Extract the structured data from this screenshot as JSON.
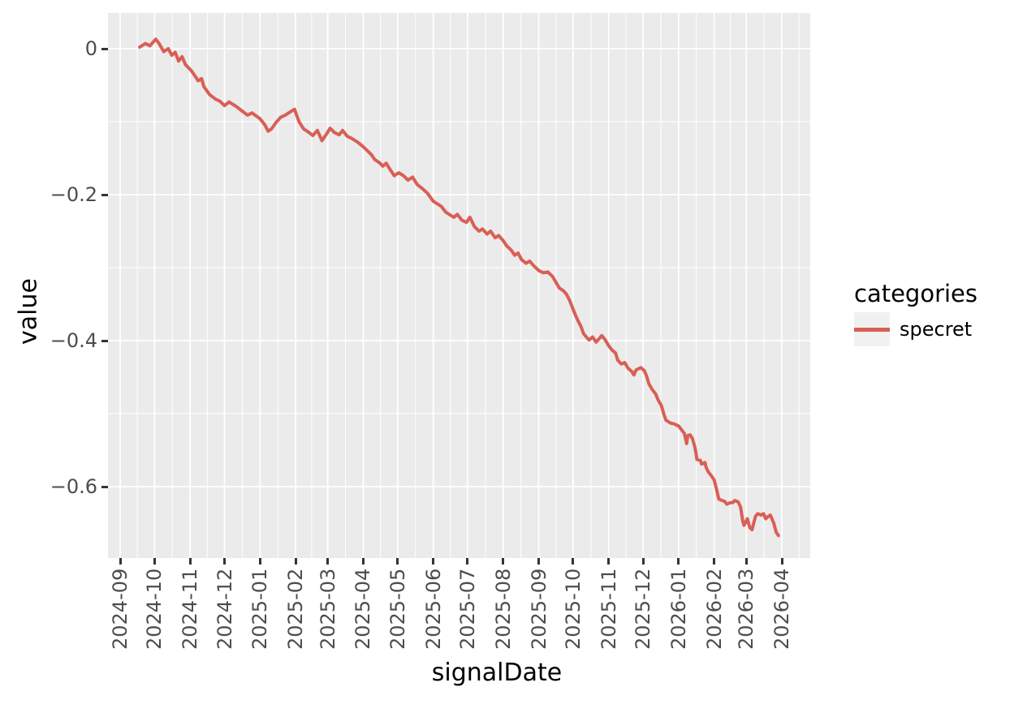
{
  "figure": {
    "background": "#FFFFFF",
    "panel_background": "#EBEBEB",
    "grid_color": "#FFFFFF",
    "tick_mark_color": "#333333",
    "tick_label_color": "#4D4D4D",
    "axis_title_color": "#000000",
    "legend_key_background": "#F1F1F1"
  },
  "chart_data": {
    "type": "line",
    "title": "",
    "xlabel": "signalDate",
    "ylabel": "value",
    "grid": {
      "major": true,
      "minor": true
    },
    "ylim": [
      -0.7,
      0.05
    ],
    "xlim": [
      "2024-08-21",
      "2026-04-25"
    ],
    "y_ticks": [
      {
        "label": "0",
        "value": 0
      },
      {
        "label": "−0.2",
        "value": -0.2
      },
      {
        "label": "−0.4",
        "value": -0.4
      },
      {
        "label": "−0.6",
        "value": -0.6
      }
    ],
    "y_minor_ticks": [
      -0.1,
      -0.3,
      -0.5
    ],
    "x_ticks": [
      "2024-09",
      "2024-10",
      "2024-11",
      "2024-12",
      "2025-01",
      "2025-02",
      "2025-03",
      "2025-04",
      "2025-05",
      "2025-06",
      "2025-07",
      "2025-08",
      "2025-09",
      "2025-10",
      "2025-11",
      "2025-12",
      "2026-01",
      "2026-02",
      "2026-03",
      "2026-04"
    ],
    "legend": {
      "title": "categories",
      "position": "right"
    },
    "series": [
      {
        "name": "specret",
        "color": "#D95F56",
        "points": [
          [
            "2024-09-18",
            0.002
          ],
          [
            "2024-09-23",
            0.007
          ],
          [
            "2024-09-27",
            0.004
          ],
          [
            "2024-10-02",
            0.013
          ],
          [
            "2024-10-05",
            0.007
          ],
          [
            "2024-10-09",
            -0.004
          ],
          [
            "2024-10-13",
            0.0
          ],
          [
            "2024-10-16",
            -0.009
          ],
          [
            "2024-10-19",
            -0.005
          ],
          [
            "2024-10-22",
            -0.017
          ],
          [
            "2024-10-25",
            -0.011
          ],
          [
            "2024-10-28",
            -0.022
          ],
          [
            "2024-11-02",
            -0.03
          ],
          [
            "2024-11-06",
            -0.039
          ],
          [
            "2024-11-08",
            -0.044
          ],
          [
            "2024-11-11",
            -0.041
          ],
          [
            "2024-11-13",
            -0.052
          ],
          [
            "2024-11-18",
            -0.063
          ],
          [
            "2024-11-23",
            -0.069
          ],
          [
            "2024-11-27",
            -0.072
          ],
          [
            "2024-12-01",
            -0.078
          ],
          [
            "2024-12-05",
            -0.073
          ],
          [
            "2024-12-08",
            -0.076
          ],
          [
            "2024-12-11",
            -0.079
          ],
          [
            "2024-12-16",
            -0.085
          ],
          [
            "2024-12-21",
            -0.091
          ],
          [
            "2024-12-25",
            -0.088
          ],
          [
            "2025-01-01",
            -0.096
          ],
          [
            "2025-01-05",
            -0.104
          ],
          [
            "2025-01-08",
            -0.113
          ],
          [
            "2025-01-11",
            -0.11
          ],
          [
            "2025-01-15",
            -0.101
          ],
          [
            "2025-01-19",
            -0.094
          ],
          [
            "2025-01-23",
            -0.091
          ],
          [
            "2025-01-27",
            -0.087
          ],
          [
            "2025-01-31",
            -0.083
          ],
          [
            "2025-02-04",
            -0.1
          ],
          [
            "2025-02-08",
            -0.11
          ],
          [
            "2025-02-12",
            -0.114
          ],
          [
            "2025-02-16",
            -0.119
          ],
          [
            "2025-02-20",
            -0.112
          ],
          [
            "2025-02-24",
            -0.126
          ],
          [
            "2025-02-28",
            -0.117
          ],
          [
            "2025-03-03",
            -0.109
          ],
          [
            "2025-03-07",
            -0.115
          ],
          [
            "2025-03-11",
            -0.118
          ],
          [
            "2025-03-14",
            -0.112
          ],
          [
            "2025-03-18",
            -0.12
          ],
          [
            "2025-03-22",
            -0.123
          ],
          [
            "2025-03-27",
            -0.128
          ],
          [
            "2025-03-31",
            -0.133
          ],
          [
            "2025-04-04",
            -0.139
          ],
          [
            "2025-04-08",
            -0.145
          ],
          [
            "2025-04-11",
            -0.152
          ],
          [
            "2025-04-15",
            -0.156
          ],
          [
            "2025-04-18",
            -0.161
          ],
          [
            "2025-04-21",
            -0.157
          ],
          [
            "2025-04-25",
            -0.167
          ],
          [
            "2025-04-28",
            -0.174
          ],
          [
            "2025-05-02",
            -0.17
          ],
          [
            "2025-05-06",
            -0.174
          ],
          [
            "2025-05-10",
            -0.18
          ],
          [
            "2025-05-14",
            -0.176
          ],
          [
            "2025-05-18",
            -0.186
          ],
          [
            "2025-05-22",
            -0.191
          ],
          [
            "2025-05-27",
            -0.198
          ],
          [
            "2025-06-01",
            -0.209
          ],
          [
            "2025-06-05",
            -0.213
          ],
          [
            "2025-06-08",
            -0.216
          ],
          [
            "2025-06-12",
            -0.224
          ],
          [
            "2025-06-15",
            -0.227
          ],
          [
            "2025-06-19",
            -0.231
          ],
          [
            "2025-06-22",
            -0.227
          ],
          [
            "2025-06-26",
            -0.235
          ],
          [
            "2025-06-30",
            -0.238
          ],
          [
            "2025-07-03",
            -0.231
          ],
          [
            "2025-07-07",
            -0.244
          ],
          [
            "2025-07-11",
            -0.25
          ],
          [
            "2025-07-14",
            -0.247
          ],
          [
            "2025-07-18",
            -0.254
          ],
          [
            "2025-07-21",
            -0.25
          ],
          [
            "2025-07-25",
            -0.259
          ],
          [
            "2025-07-28",
            -0.256
          ],
          [
            "2025-08-01",
            -0.263
          ],
          [
            "2025-08-04",
            -0.27
          ],
          [
            "2025-08-08",
            -0.276
          ],
          [
            "2025-08-11",
            -0.283
          ],
          [
            "2025-08-14",
            -0.28
          ],
          [
            "2025-08-17",
            -0.289
          ],
          [
            "2025-08-21",
            -0.294
          ],
          [
            "2025-08-24",
            -0.291
          ],
          [
            "2025-08-28",
            -0.298
          ],
          [
            "2025-09-01",
            -0.304
          ],
          [
            "2025-09-05",
            -0.307
          ],
          [
            "2025-09-09",
            -0.306
          ],
          [
            "2025-09-13",
            -0.312
          ],
          [
            "2025-09-16",
            -0.32
          ],
          [
            "2025-09-19",
            -0.328
          ],
          [
            "2025-09-22",
            -0.331
          ],
          [
            "2025-09-25",
            -0.336
          ],
          [
            "2025-09-28",
            -0.345
          ],
          [
            "2025-09-30",
            -0.353
          ],
          [
            "2025-10-03",
            -0.365
          ],
          [
            "2025-10-05",
            -0.372
          ],
          [
            "2025-10-08",
            -0.381
          ],
          [
            "2025-10-10",
            -0.39
          ],
          [
            "2025-10-13",
            -0.396
          ],
          [
            "2025-10-15",
            -0.399
          ],
          [
            "2025-10-18",
            -0.395
          ],
          [
            "2025-10-21",
            -0.402
          ],
          [
            "2025-10-24",
            -0.397
          ],
          [
            "2025-10-26",
            -0.393
          ],
          [
            "2025-10-29",
            -0.399
          ],
          [
            "2025-11-01",
            -0.407
          ],
          [
            "2025-11-04",
            -0.413
          ],
          [
            "2025-11-07",
            -0.417
          ],
          [
            "2025-11-09",
            -0.427
          ],
          [
            "2025-11-12",
            -0.432
          ],
          [
            "2025-11-15",
            -0.43
          ],
          [
            "2025-11-18",
            -0.438
          ],
          [
            "2025-11-21",
            -0.442
          ],
          [
            "2025-11-23",
            -0.447
          ],
          [
            "2025-11-25",
            -0.44
          ],
          [
            "2025-11-29",
            -0.437
          ],
          [
            "2025-12-02",
            -0.441
          ],
          [
            "2025-12-04",
            -0.448
          ],
          [
            "2025-12-06",
            -0.459
          ],
          [
            "2025-12-09",
            -0.467
          ],
          [
            "2025-12-12",
            -0.473
          ],
          [
            "2025-12-14",
            -0.481
          ],
          [
            "2025-12-17",
            -0.489
          ],
          [
            "2025-12-19",
            -0.5
          ],
          [
            "2025-12-21",
            -0.509
          ],
          [
            "2025-12-25",
            -0.513
          ],
          [
            "2025-12-28",
            -0.514
          ],
          [
            "2026-01-01",
            -0.517
          ],
          [
            "2026-01-03",
            -0.521
          ],
          [
            "2026-01-06",
            -0.527
          ],
          [
            "2026-01-08",
            -0.541
          ],
          [
            "2026-01-09",
            -0.53
          ],
          [
            "2026-01-11",
            -0.529
          ],
          [
            "2026-01-13",
            -0.534
          ],
          [
            "2026-01-15",
            -0.545
          ],
          [
            "2026-01-16",
            -0.553
          ],
          [
            "2026-01-17",
            -0.563
          ],
          [
            "2026-01-20",
            -0.564
          ],
          [
            "2026-01-21",
            -0.569
          ],
          [
            "2026-01-24",
            -0.567
          ],
          [
            "2026-01-25",
            -0.574
          ],
          [
            "2026-01-27",
            -0.58
          ],
          [
            "2026-01-30",
            -0.586
          ],
          [
            "2026-02-01",
            -0.591
          ],
          [
            "2026-02-03",
            -0.603
          ],
          [
            "2026-02-05",
            -0.617
          ],
          [
            "2026-02-08",
            -0.619
          ],
          [
            "2026-02-10",
            -0.62
          ],
          [
            "2026-02-12",
            -0.624
          ],
          [
            "2026-02-15",
            -0.622
          ],
          [
            "2026-02-17",
            -0.622
          ],
          [
            "2026-02-19",
            -0.619
          ],
          [
            "2026-02-22",
            -0.621
          ],
          [
            "2026-02-24",
            -0.628
          ],
          [
            "2026-02-26",
            -0.648
          ],
          [
            "2026-02-27",
            -0.653
          ],
          [
            "2026-03-01",
            -0.647
          ],
          [
            "2026-03-02",
            -0.644
          ],
          [
            "2026-03-04",
            -0.656
          ],
          [
            "2026-03-06",
            -0.659
          ],
          [
            "2026-03-08",
            -0.647
          ],
          [
            "2026-03-09",
            -0.641
          ],
          [
            "2026-03-11",
            -0.637
          ],
          [
            "2026-03-14",
            -0.639
          ],
          [
            "2026-03-16",
            -0.637
          ],
          [
            "2026-03-18",
            -0.644
          ],
          [
            "2026-03-20",
            -0.641
          ],
          [
            "2026-03-22",
            -0.639
          ],
          [
            "2026-03-25",
            -0.65
          ],
          [
            "2026-03-27",
            -0.662
          ],
          [
            "2026-03-29",
            -0.667
          ]
        ]
      }
    ]
  }
}
